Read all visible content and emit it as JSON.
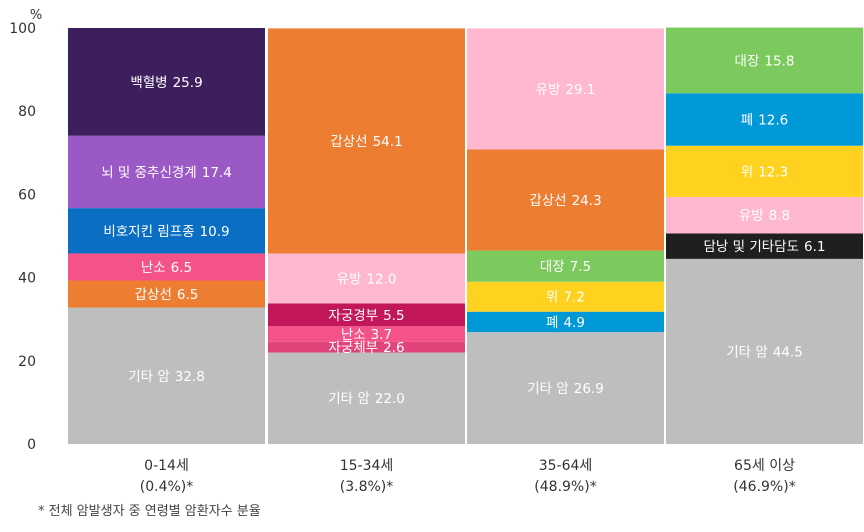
{
  "chart_data": {
    "type": "bar",
    "stacked": true,
    "ylabel": "%",
    "ylim": [
      0,
      100
    ],
    "yticks": [
      0,
      20,
      40,
      60,
      80,
      100
    ],
    "grid": false,
    "categories": [
      {
        "label": "0-14세",
        "sublabel": "(0.4%)*"
      },
      {
        "label": "15-34세",
        "sublabel": "(3.8%)*"
      },
      {
        "label": "35-64세",
        "sublabel": "(48.9%)*"
      },
      {
        "label": "65세 이상",
        "sublabel": "(46.9%)*"
      }
    ],
    "stacks": [
      [
        {
          "name": "기타 암",
          "value": 32.8,
          "color": "#bebebe",
          "text": "#ffffff"
        },
        {
          "name": "갑상선",
          "value": 6.5,
          "color": "#ed7d31",
          "text": "#ffffff"
        },
        {
          "name": "난소",
          "value": 6.5,
          "color": "#f4538a",
          "text": "#ffffff"
        },
        {
          "name": "비호지킨 림프종",
          "value": 10.9,
          "color": "#0a6fc2",
          "text": "#ffffff"
        },
        {
          "name": "뇌 및 중추신경계",
          "value": 17.4,
          "color": "#9b59c5",
          "text": "#ffffff"
        },
        {
          "name": "백혈병",
          "value": 25.9,
          "color": "#3e1f5e",
          "text": "#ffffff"
        }
      ],
      [
        {
          "name": "기타 암",
          "value": 22.0,
          "color": "#bebebe",
          "text": "#ffffff"
        },
        {
          "name": "자궁체부",
          "value": 2.6,
          "color": "#e0447a",
          "text": "#ffffff"
        },
        {
          "name": "난소",
          "value": 3.7,
          "color": "#f4538a",
          "text": "#ffffff"
        },
        {
          "name": "자궁경부",
          "value": 5.5,
          "color": "#c2185b",
          "text": "#ffffff"
        },
        {
          "name": "유방",
          "value": 12.0,
          "color": "#ffb8cf",
          "text": "#ffffff"
        },
        {
          "name": "갑상선",
          "value": 54.1,
          "color": "#ed7d31",
          "text": "#ffffff"
        }
      ],
      [
        {
          "name": "기타 암",
          "value": 26.9,
          "color": "#bebebe",
          "text": "#ffffff"
        },
        {
          "name": "폐",
          "value": 4.9,
          "color": "#0099d8",
          "text": "#ffffff"
        },
        {
          "name": "위",
          "value": 7.2,
          "color": "#ffd21f",
          "text": "#ffffff"
        },
        {
          "name": "대장",
          "value": 7.5,
          "color": "#7cc95d",
          "text": "#ffffff"
        },
        {
          "name": "갑상선",
          "value": 24.3,
          "color": "#ed7d31",
          "text": "#ffffff"
        },
        {
          "name": "유방",
          "value": 29.1,
          "color": "#ffb8cf",
          "text": "#ffffff"
        }
      ],
      [
        {
          "name": "기타 암",
          "value": 44.5,
          "color": "#bebebe",
          "text": "#ffffff"
        },
        {
          "name": "담낭 및 기타담도",
          "value": 6.1,
          "color": "#1f1f1f",
          "text": "#ffffff"
        },
        {
          "name": "유방",
          "value": 8.8,
          "color": "#ffb8cf",
          "text": "#ffffff"
        },
        {
          "name": "위",
          "value": 12.3,
          "color": "#ffd21f",
          "text": "#ffffff"
        },
        {
          "name": "폐",
          "value": 12.6,
          "color": "#0099d8",
          "text": "#ffffff"
        },
        {
          "name": "대장",
          "value": 15.8,
          "color": "#7cc95d",
          "text": "#ffffff"
        }
      ]
    ]
  },
  "footnote": "* 전체 암발생자 중 연령별 암환자수 분율"
}
